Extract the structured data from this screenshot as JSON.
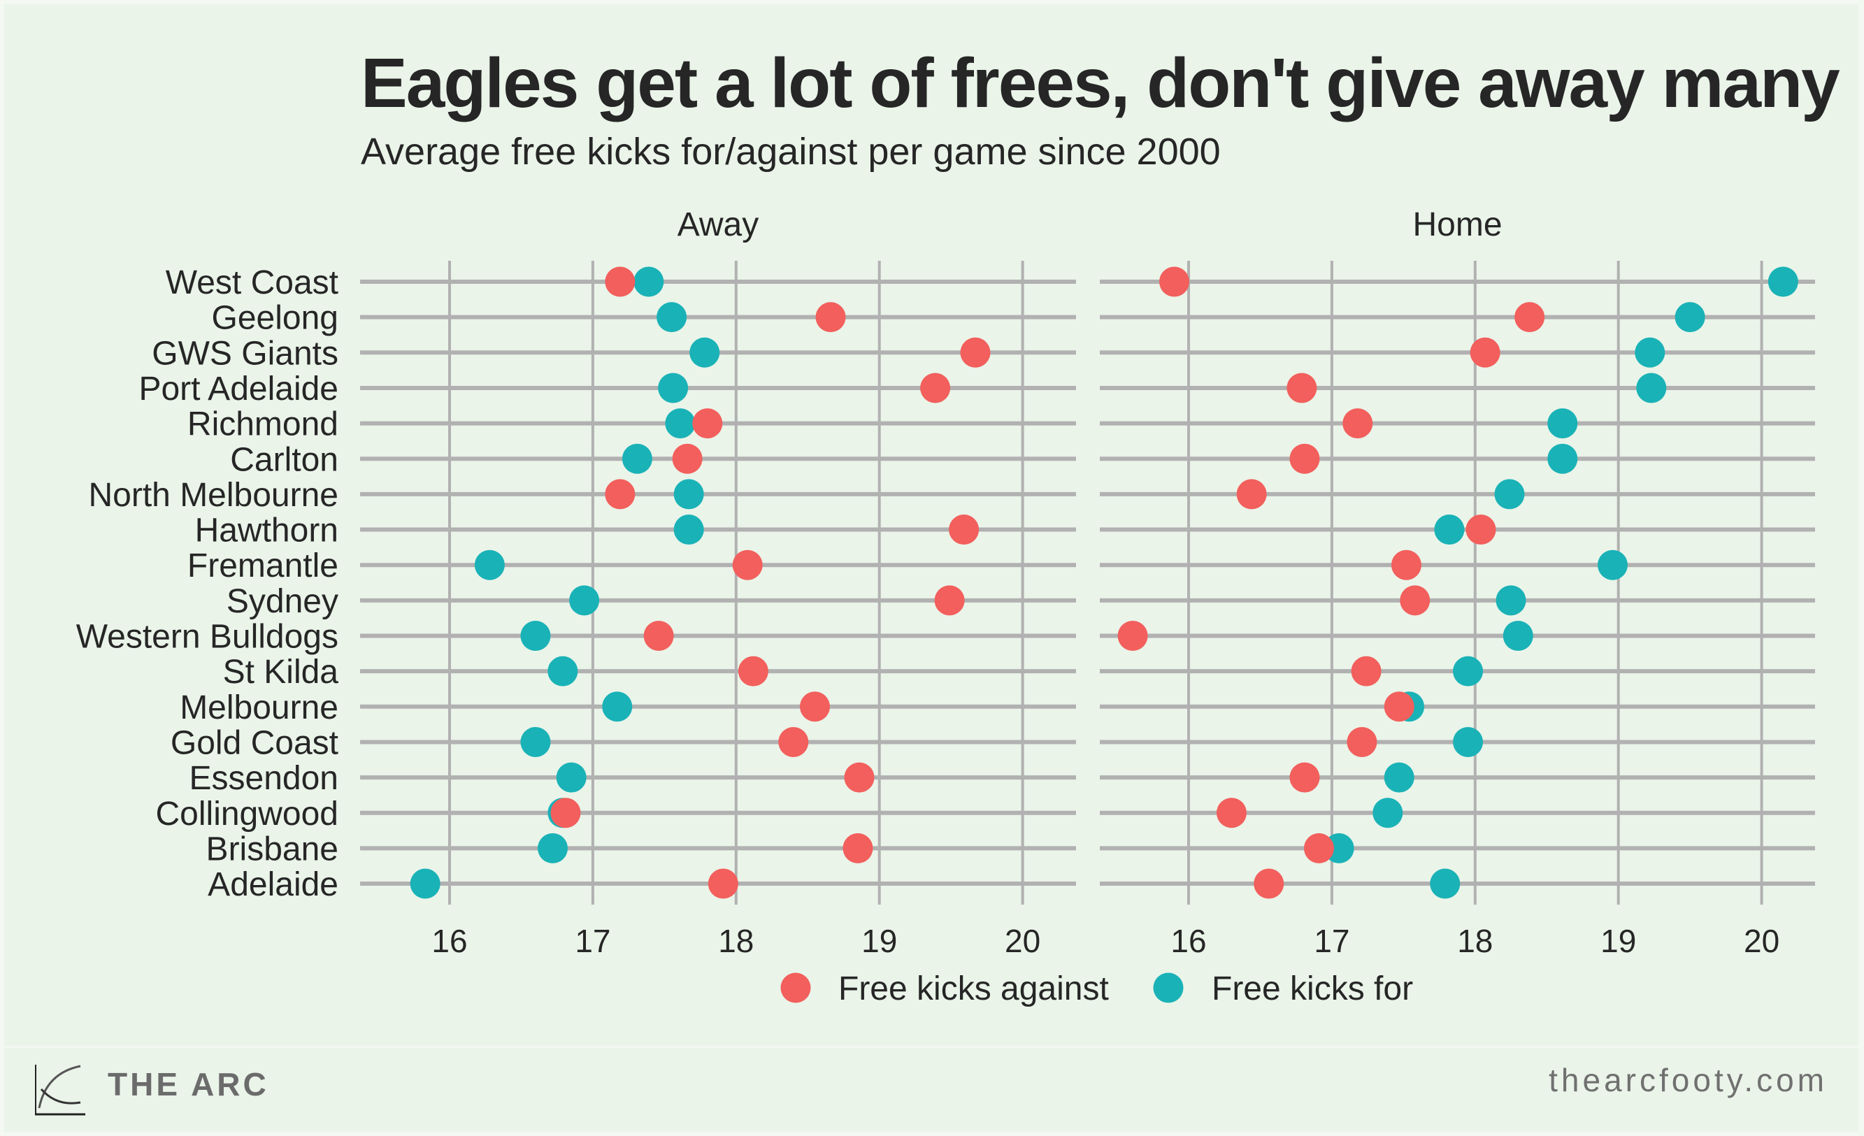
{
  "header": {
    "title": "Eagles get a lot of frees, don't give away many",
    "subtitle": "Average free kicks for/against per game since 2000"
  },
  "footer": {
    "brand": "THE ARC",
    "site": "thearcfooty.com",
    "logo_icon": "arc-curve-logo-icon"
  },
  "colors": {
    "against": "#f25f5c",
    "for": "#19b2b7",
    "grid": "#b1b1b1",
    "text": "#262626",
    "background": "#eaf4e9"
  },
  "chart_data": {
    "type": "scatter",
    "subtype": "dot-plot",
    "title": "Eagles get a lot of frees, don't give away many",
    "subtitle": "Average free kicks for/against per game since 2000",
    "xlabel": "",
    "ylabel": "",
    "xlim": [
      15.45,
      20.45
    ],
    "x_ticks": [
      16,
      17,
      18,
      19,
      20
    ],
    "grid": true,
    "legend": {
      "position": "bottom",
      "entries": [
        {
          "key": "against",
          "label": "Free kicks against"
        },
        {
          "key": "for",
          "label": "Free kicks for"
        }
      ]
    },
    "categories": [
      "West Coast",
      "Geelong",
      "GWS Giants",
      "Port Adelaide",
      "Richmond",
      "Carlton",
      "North Melbourne",
      "Hawthorn",
      "Fremantle",
      "Sydney",
      "Western Bulldogs",
      "St Kilda",
      "Melbourne",
      "Gold Coast",
      "Essendon",
      "Collingwood",
      "Brisbane",
      "Adelaide"
    ],
    "facets": [
      {
        "label": "Away",
        "series": [
          {
            "name": "Free kicks against",
            "key": "against",
            "values": [
              17.19,
              18.66,
              19.67,
              19.39,
              17.8,
              17.66,
              17.19,
              19.59,
              18.08,
              19.49,
              17.46,
              18.12,
              18.55,
              18.4,
              18.86,
              16.81,
              18.85,
              17.91
            ]
          },
          {
            "name": "Free kicks for",
            "key": "for",
            "values": [
              17.39,
              17.55,
              17.78,
              17.56,
              17.61,
              17.31,
              17.67,
              17.67,
              16.28,
              16.94,
              16.6,
              16.79,
              17.17,
              16.6,
              16.85,
              16.79,
              16.72,
              15.83
            ]
          }
        ]
      },
      {
        "label": "Home",
        "series": [
          {
            "name": "Free kicks against",
            "key": "against",
            "values": [
              15.9,
              18.38,
              18.07,
              16.79,
              17.18,
              16.81,
              16.44,
              18.04,
              17.52,
              17.58,
              15.61,
              17.24,
              17.47,
              17.21,
              16.81,
              16.3,
              16.91,
              16.56
            ]
          },
          {
            "name": "Free kicks for",
            "key": "for",
            "values": [
              20.15,
              19.5,
              19.22,
              19.23,
              18.61,
              18.61,
              18.24,
              17.82,
              18.96,
              18.25,
              18.3,
              17.95,
              17.54,
              17.95,
              17.47,
              17.39,
              17.05,
              17.79
            ]
          }
        ]
      }
    ]
  }
}
